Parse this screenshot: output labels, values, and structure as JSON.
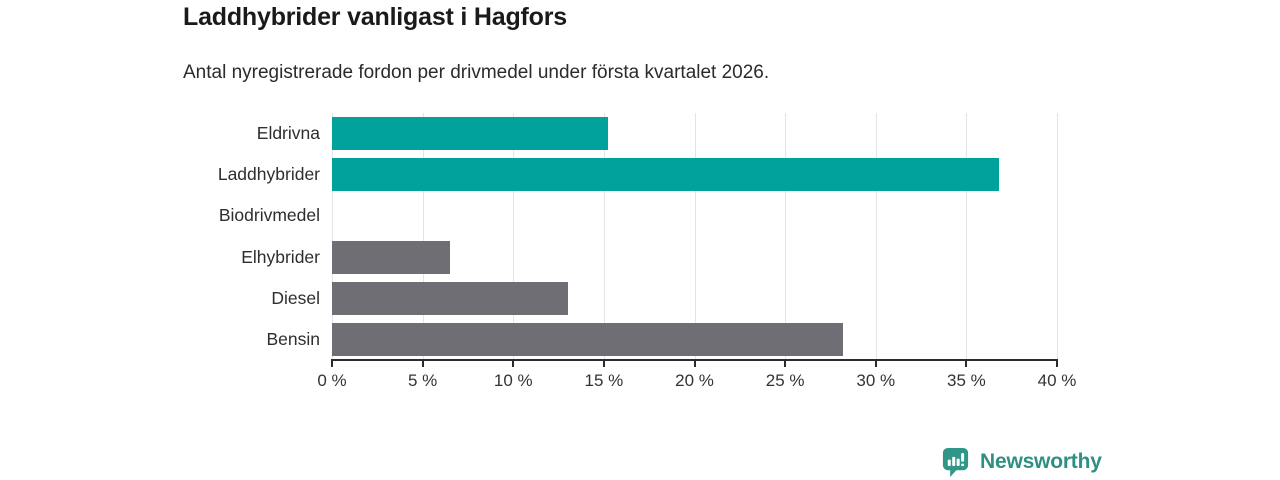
{
  "header": {
    "title": "Laddhybrider vanligast i Hagfors",
    "subtitle": "Antal nyregistrerade fordon per drivmedel under första kvartalet 2026."
  },
  "chart_data": {
    "type": "bar",
    "orientation": "horizontal",
    "title": "Laddhybrider vanligast i Hagfors",
    "subtitle": "Antal nyregistrerade fordon per drivmedel under första kvartalet 2026.",
    "categories": [
      "Eldrivna",
      "Laddhybrider",
      "Biodrivmedel",
      "Elhybrider",
      "Diesel",
      "Bensin"
    ],
    "values": [
      15.2,
      36.8,
      0,
      6.5,
      13,
      28.2
    ],
    "unit": "%",
    "bar_colors": [
      "#00a29b",
      "#00a29b",
      "#6e6e74",
      "#6e6e74",
      "#6e6e74",
      "#6e6e74"
    ],
    "xlim": [
      0,
      40
    ],
    "x_ticks": [
      0,
      5,
      10,
      15,
      20,
      25,
      30,
      35,
      40
    ],
    "x_tick_labels": [
      "0 %",
      "5 %",
      "10 %",
      "15 %",
      "20 %",
      "25 %",
      "30 %",
      "35 %",
      "40 %"
    ],
    "grid": true,
    "legend": false,
    "xlabel": "",
    "ylabel": ""
  },
  "footer": {
    "brand": "Newsworthy",
    "brand_color": "#2f8f82",
    "icon_color": "#2f9688"
  },
  "colors": {
    "accent_teal": "#00a29b",
    "neutral_gray": "#6e6e74",
    "gridline": "#e4e4e4",
    "axis": "#2b2b2b",
    "text_dark": "#1a1a1a"
  }
}
